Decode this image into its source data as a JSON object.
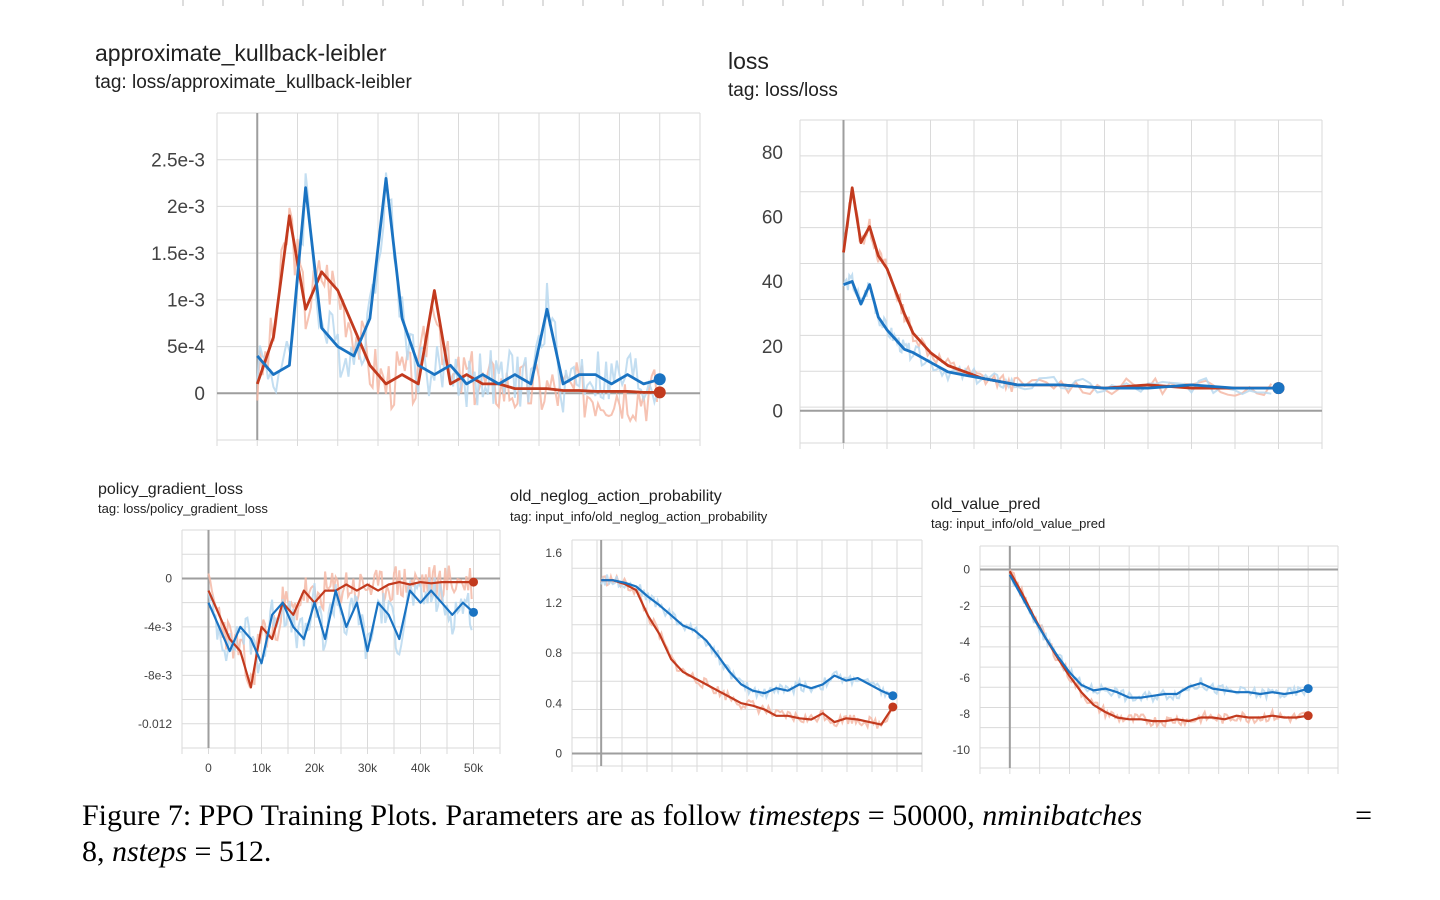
{
  "charts": [
    {
      "title": "approximate_kullback-leibler",
      "tag": "tag: loss/approximate_kullback-leibler"
    },
    {
      "title": "loss",
      "tag": "tag: loss/loss"
    },
    {
      "title": "policy_gradient_loss",
      "tag": "tag: loss/policy_gradient_loss"
    },
    {
      "title": "old_neglog_action_probability",
      "tag": "tag: input_info/old_neglog_action_probability"
    },
    {
      "title": "old_value_pred",
      "tag": "tag: input_info/old_value_pred"
    }
  ],
  "caption": {
    "prefix": "Figure 7: PPO Training Plots. Parameters are as follow ",
    "m1": "timesteps",
    "t1": " = 50000, ",
    "m2": "nminibatches",
    "t2": " =",
    "t3": "8, ",
    "m3": "nsteps",
    "t4": " = 512."
  },
  "colors": {
    "red_run": "#c23a1e",
    "blue_run": "#1a73c2",
    "red_raw": "#f4b8a6",
    "blue_raw": "#b9d8ee",
    "grid": "#dadada",
    "axis": "#9e9e9e"
  },
  "chart_data": [
    {
      "type": "line",
      "title": "approximate_kullback-leibler",
      "subtitle": "tag: loss/approximate_kullback-leibler",
      "x": [
        0,
        2000,
        4000,
        6000,
        8000,
        10000,
        12000,
        14000,
        16000,
        18000,
        20000,
        22000,
        24000,
        26000,
        28000,
        30000,
        32000,
        34000,
        36000,
        38000,
        40000,
        42000,
        44000,
        46000,
        48000,
        50000
      ],
      "xlim": [
        -5000,
        55000
      ],
      "yticks": [
        "2.5e-3",
        "2e-3",
        "1.5e-3",
        "1e-3",
        "5e-4",
        "0"
      ],
      "ytick_values": [
        0.0025,
        0.002,
        0.0015,
        0.001,
        0.0005,
        0
      ],
      "ylim": [
        -0.0005,
        0.003
      ],
      "grid": true,
      "series": [
        {
          "color": "red",
          "values": [
            0.0001,
            0.0006,
            0.0019,
            0.0009,
            0.0013,
            0.0011,
            0.0007,
            0.0003,
            0.0001,
            0.0002,
            0.0001,
            0.0011,
            0.0001,
            0.0002,
            0.0001,
            0.0001,
            5e-05,
            5e-05,
            5e-05,
            3e-05,
            3e-05,
            2e-05,
            2e-05,
            2e-05,
            1e-05,
            1e-05
          ]
        },
        {
          "color": "blue",
          "values": [
            0.0004,
            0.0002,
            0.0003,
            0.0022,
            0.0007,
            0.0005,
            0.0004,
            0.0008,
            0.0023,
            0.0008,
            0.0003,
            0.0002,
            0.0003,
            0.0001,
            0.0002,
            0.0001,
            0.0002,
            0.0001,
            0.0009,
            0.0001,
            0.0002,
            0.0002,
            0.0001,
            0.0002,
            0.0001,
            0.00015
          ]
        }
      ]
    },
    {
      "type": "line",
      "title": "loss",
      "subtitle": "tag: loss/loss",
      "x": [
        0,
        1000,
        2000,
        3000,
        4000,
        5000,
        6000,
        7000,
        8000,
        10000,
        12000,
        14000,
        16000,
        18000,
        20000,
        25000,
        30000,
        35000,
        40000,
        45000,
        50000
      ],
      "xlim": [
        -5000,
        55000
      ],
      "yticks": [
        "80",
        "60",
        "40",
        "20",
        "0"
      ],
      "ytick_values": [
        80,
        60,
        40,
        20,
        0
      ],
      "ylim": [
        -10,
        90
      ],
      "grid": true,
      "series": [
        {
          "color": "red",
          "values": [
            49,
            69,
            52,
            57,
            48,
            44,
            37,
            30,
            24,
            18,
            14,
            12,
            10,
            9,
            8,
            8,
            7,
            8,
            7,
            7,
            7
          ]
        },
        {
          "color": "blue",
          "values": [
            39,
            40,
            33,
            39,
            29,
            25,
            22,
            19,
            18,
            15,
            12,
            11,
            10,
            9,
            8,
            8,
            7,
            7,
            8,
            7,
            7
          ]
        }
      ]
    },
    {
      "type": "line",
      "title": "policy_gradient_loss",
      "subtitle": "tag: loss/policy_gradient_loss",
      "x": [
        0,
        2000,
        4000,
        6000,
        8000,
        10000,
        12000,
        14000,
        16000,
        18000,
        20000,
        22000,
        24000,
        26000,
        28000,
        30000,
        32000,
        34000,
        36000,
        38000,
        40000,
        42000,
        44000,
        46000,
        48000,
        50000
      ],
      "xticks": [
        "0",
        "10k",
        "20k",
        "30k",
        "40k",
        "50k"
      ],
      "xtick_values": [
        0,
        10000,
        20000,
        30000,
        40000,
        50000
      ],
      "xlim": [
        -5000,
        55000
      ],
      "yticks": [
        "0",
        "-4e-3",
        "-8e-3",
        "-0.012"
      ],
      "ytick_values": [
        0,
        -0.004,
        -0.008,
        -0.012
      ],
      "ylim": [
        -0.014,
        0.004
      ],
      "grid": true,
      "series": [
        {
          "color": "red",
          "values": [
            -0.001,
            -0.003,
            -0.005,
            -0.006,
            -0.009,
            -0.004,
            -0.005,
            -0.002,
            -0.003,
            -0.001,
            -0.002,
            -0.001,
            -0.001,
            -0.0005,
            -0.001,
            -0.0005,
            -0.001,
            -0.0005,
            -0.0003,
            -0.0005,
            -0.0003,
            -0.0004,
            -0.0003,
            -0.0003,
            -0.0003,
            -0.0003
          ]
        },
        {
          "color": "blue",
          "values": [
            -0.002,
            -0.004,
            -0.006,
            -0.004,
            -0.005,
            -0.007,
            -0.003,
            -0.002,
            -0.004,
            -0.005,
            -0.002,
            -0.005,
            -0.001,
            -0.004,
            -0.002,
            -0.006,
            -0.002,
            -0.003,
            -0.005,
            -0.001,
            -0.002,
            -0.001,
            -0.002,
            -0.003,
            -0.002,
            -0.0028
          ]
        }
      ]
    },
    {
      "type": "line",
      "title": "old_neglog_action_probability",
      "subtitle": "tag: input_info/old_neglog_action_probability",
      "x": [
        0,
        2000,
        4000,
        6000,
        8000,
        10000,
        12000,
        14000,
        16000,
        18000,
        20000,
        22000,
        24000,
        26000,
        28000,
        30000,
        32000,
        34000,
        36000,
        38000,
        40000,
        42000,
        44000,
        46000,
        48000,
        50000
      ],
      "xlim": [
        -5000,
        55000
      ],
      "yticks": [
        "1.6",
        "1.2",
        "0.8",
        "0.4",
        "0"
      ],
      "ytick_values": [
        1.6,
        1.2,
        0.8,
        0.4,
        0
      ],
      "ylim": [
        -0.1,
        1.7
      ],
      "grid": true,
      "series": [
        {
          "color": "red",
          "values": [
            1.38,
            1.38,
            1.35,
            1.3,
            1.1,
            0.95,
            0.75,
            0.65,
            0.6,
            0.55,
            0.5,
            0.45,
            0.4,
            0.38,
            0.35,
            0.3,
            0.3,
            0.28,
            0.27,
            0.32,
            0.25,
            0.28,
            0.27,
            0.25,
            0.23,
            0.37
          ]
        },
        {
          "color": "blue",
          "values": [
            1.38,
            1.38,
            1.36,
            1.33,
            1.25,
            1.18,
            1.1,
            1.02,
            0.98,
            0.9,
            0.78,
            0.65,
            0.55,
            0.5,
            0.48,
            0.52,
            0.5,
            0.55,
            0.52,
            0.55,
            0.62,
            0.58,
            0.6,
            0.55,
            0.5,
            0.46
          ]
        }
      ]
    },
    {
      "type": "line",
      "title": "old_value_pred",
      "subtitle": "tag: input_info/old_value_pred",
      "x": [
        0,
        2000,
        4000,
        6000,
        8000,
        10000,
        12000,
        14000,
        16000,
        18000,
        20000,
        22000,
        24000,
        26000,
        28000,
        30000,
        32000,
        34000,
        36000,
        38000,
        40000,
        42000,
        44000,
        46000,
        48000,
        50000
      ],
      "xlim": [
        -5000,
        55000
      ],
      "yticks": [
        "0",
        "-2",
        "-4",
        "-6",
        "-8",
        "-10"
      ],
      "ytick_values": [
        0,
        -2,
        -4,
        -6,
        -8,
        -10
      ],
      "ylim": [
        -11,
        1.3
      ],
      "grid": true,
      "series": [
        {
          "color": "red",
          "values": [
            -0.1,
            -1.3,
            -2.6,
            -3.8,
            -4.9,
            -5.9,
            -6.8,
            -7.5,
            -7.9,
            -8.2,
            -8.3,
            -8.3,
            -8.4,
            -8.4,
            -8.3,
            -8.4,
            -8.2,
            -8.2,
            -8.3,
            -8.1,
            -8.2,
            -8.2,
            -8.1,
            -8.2,
            -8.2,
            -8.1
          ]
        },
        {
          "color": "blue",
          "values": [
            -0.3,
            -1.5,
            -2.7,
            -3.8,
            -4.8,
            -5.7,
            -6.4,
            -6.7,
            -6.6,
            -6.8,
            -7.1,
            -7.1,
            -7.0,
            -6.9,
            -6.9,
            -6.5,
            -6.3,
            -6.6,
            -6.7,
            -6.8,
            -6.8,
            -6.9,
            -6.8,
            -6.9,
            -6.8,
            -6.6
          ]
        }
      ]
    }
  ]
}
